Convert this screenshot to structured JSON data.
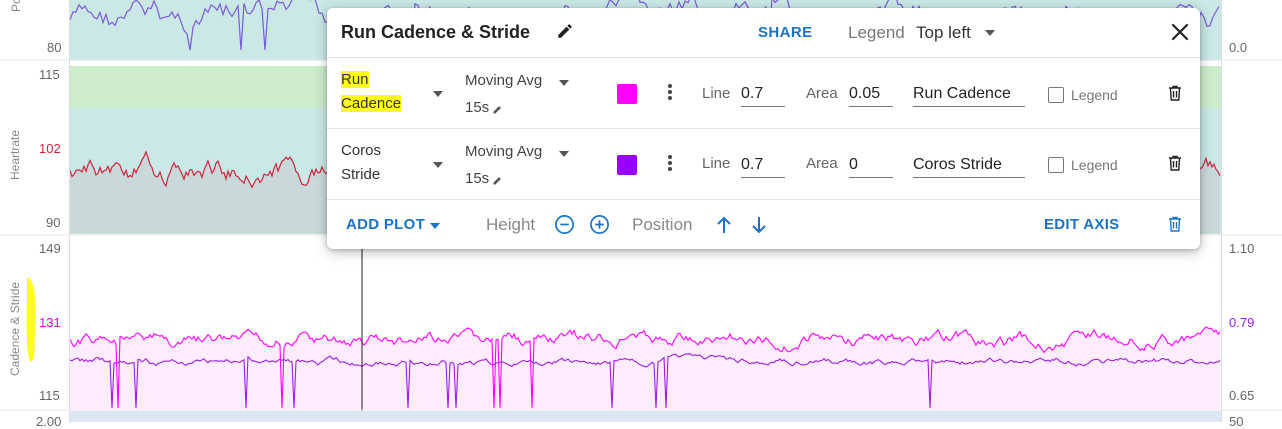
{
  "axes": {
    "top": {
      "left_tick": "80",
      "right_tick": "0.0",
      "label": "Po"
    },
    "heartrate": {
      "label": "Heartrate",
      "ticks": [
        "115",
        "102",
        "90"
      ],
      "accent": "#d0243f"
    },
    "cadence": {
      "label": "Cadence & Stride",
      "ticks": [
        "149",
        "131",
        "115"
      ],
      "right_ticks": [
        "1.10",
        "0.79",
        "0.65"
      ],
      "accent_left": "#ff00ff",
      "accent_right": "#9a1fe0"
    },
    "bottom": {
      "left_tick": "2.00",
      "right_tick": "50"
    }
  },
  "panel": {
    "title": "Run Cadence & Stride",
    "share_label": "SHARE",
    "legend_label": "Legend",
    "legend_value": "Top left",
    "rows": [
      {
        "name_line1": "Run",
        "name_line2": "Cadence",
        "smoothing": "Moving Avg",
        "period": "15s",
        "color": "#ff00ff",
        "line_label": "Line",
        "line_value": "0.7",
        "area_label": "Area",
        "area_value": "0.05",
        "display_name": "Run Cadence",
        "legend_checkbox_label": "Legend"
      },
      {
        "name_line1": "Coros",
        "name_line2": "Stride",
        "smoothing": "Moving Avg",
        "period": "15s",
        "color": "#9a00ff",
        "line_label": "Line",
        "line_value": "0.7",
        "area_label": "Area",
        "area_value": "0",
        "display_name": "Coros Stride",
        "legend_checkbox_label": "Legend"
      }
    ],
    "footer": {
      "add_plot_label": "ADD PLOT",
      "height_label": "Height",
      "position_label": "Position",
      "edit_axis_label": "EDIT AXIS"
    }
  },
  "colors": {
    "brand_blue": "#1a73c8",
    "highlight": "#ffff1a"
  }
}
